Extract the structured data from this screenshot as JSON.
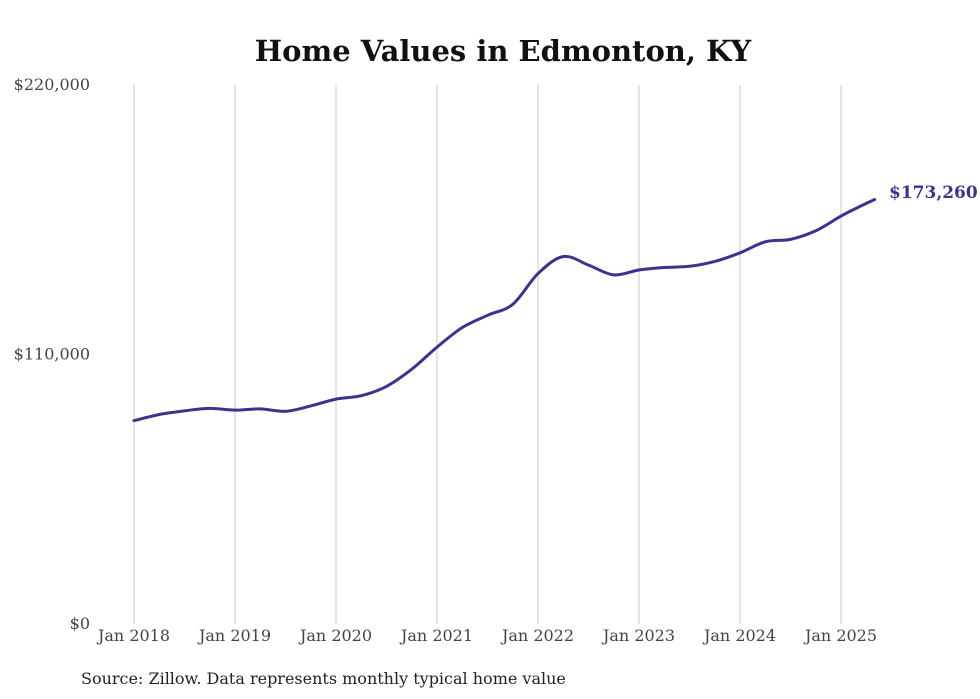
{
  "chart_data": {
    "type": "line",
    "title": "Home Values in Edmonton, KY",
    "source_note": "Source: Zillow. Data represents monthly typical home value",
    "xlabel": "",
    "ylabel": "",
    "x_tick_labels": [
      "Jan 2018",
      "Jan 2019",
      "Jan 2020",
      "Jan 2021",
      "Jan 2022",
      "Jan 2023",
      "Jan 2024",
      "Jan 2025"
    ],
    "y_tick_labels": [
      "$0",
      "$110,000",
      "$220,000"
    ],
    "y_ticks": [
      0,
      110000,
      220000
    ],
    "ylim": [
      0,
      220000
    ],
    "xlim": [
      "2018-01",
      "2025-05"
    ],
    "grid": "vertical lines at x ticks",
    "line_color": "#3a3491",
    "end_label": "$173,260",
    "series": [
      {
        "x": [
          "2018-01",
          "2018-04",
          "2018-07",
          "2018-10",
          "2019-01",
          "2019-04",
          "2019-07",
          "2019-10",
          "2020-01",
          "2020-04",
          "2020-07",
          "2020-10",
          "2021-01",
          "2021-04",
          "2021-07",
          "2021-10",
          "2022-01",
          "2022-04",
          "2022-07",
          "2022-10",
          "2023-01",
          "2023-04",
          "2023-07",
          "2023-10",
          "2024-01",
          "2024-04",
          "2024-07",
          "2024-10",
          "2025-01",
          "2025-03",
          "2025-05"
        ],
        "values": [
          83000,
          85500,
          87000,
          88000,
          87300,
          87800,
          86800,
          89000,
          91800,
          93200,
          97000,
          104000,
          113000,
          121000,
          126000,
          130500,
          143000,
          150000,
          146500,
          142500,
          144500,
          145500,
          146000,
          148000,
          151500,
          156000,
          157000,
          160500,
          166500,
          170000,
          173260
        ]
      }
    ]
  }
}
